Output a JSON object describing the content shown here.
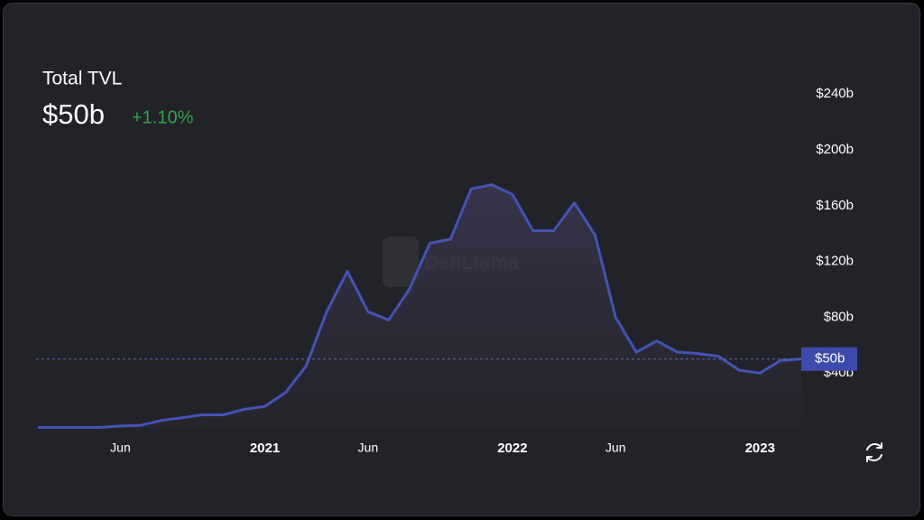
{
  "chart_data": {
    "type": "area",
    "title": "Total TVL",
    "current_value": {
      "value": 50,
      "label": "$50b"
    },
    "change": "+1.10%",
    "watermark": "DefiLlama",
    "x": [
      "2020-02",
      "2020-03",
      "2020-04",
      "2020-05",
      "2020-06",
      "2020-07",
      "2020-08",
      "2020-09",
      "2020-10",
      "2020-11",
      "2020-12",
      "2021-01",
      "2021-02",
      "2021-03",
      "2021-04",
      "2021-05",
      "2021-06",
      "2021-07",
      "2021-08",
      "2021-09",
      "2021-10",
      "2021-11",
      "2021-12",
      "2022-01",
      "2022-02",
      "2022-03",
      "2022-04",
      "2022-05",
      "2022-06",
      "2022-07",
      "2022-08",
      "2022-09",
      "2022-10",
      "2022-11",
      "2022-12",
      "2023-01",
      "2023-02",
      "2023-03"
    ],
    "series": [
      {
        "name": "Total TVL",
        "color": "#4254b5",
        "values": [
          1,
          1,
          1,
          1,
          2,
          2.5,
          6,
          8,
          10,
          10,
          14,
          16,
          26,
          45,
          84,
          113,
          84,
          78,
          100,
          133,
          136,
          172,
          175,
          168,
          142,
          142,
          162,
          139,
          80,
          55,
          63,
          55,
          54,
          52,
          42,
          40,
          49,
          50
        ]
      }
    ],
    "xlim": [
      "2020-02",
      "2023-03"
    ],
    "xticks": [
      {
        "value": "2020-06",
        "label": "Jun"
      },
      {
        "value": "2021-01",
        "label": "2021"
      },
      {
        "value": "2021-06",
        "label": "Jun"
      },
      {
        "value": "2022-01",
        "label": "2022"
      },
      {
        "value": "2022-06",
        "label": "Jun"
      },
      {
        "value": "2023-01",
        "label": "2023"
      }
    ],
    "ylim": [
      0,
      255
    ],
    "yticks": [
      {
        "value": 40,
        "label": "$40b"
      },
      {
        "value": 80,
        "label": "$80b"
      },
      {
        "value": 120,
        "label": "$120b"
      },
      {
        "value": 160,
        "label": "$160b"
      },
      {
        "value": 200,
        "label": "$200b"
      },
      {
        "value": 240,
        "label": "$240b"
      }
    ],
    "grid": false
  }
}
